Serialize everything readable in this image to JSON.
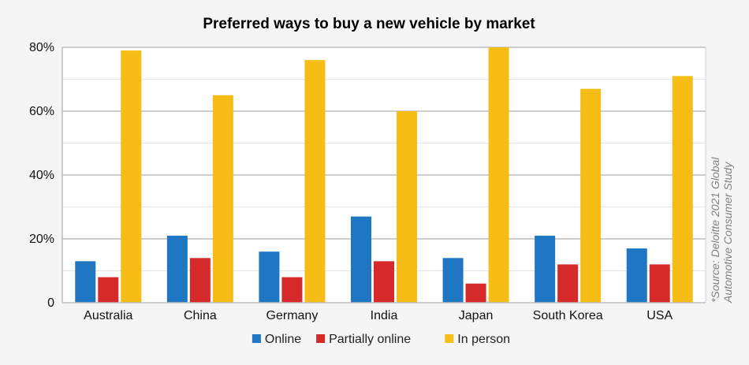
{
  "chart_data": {
    "type": "bar",
    "title": "Preferred ways to buy a new vehicle by market",
    "source_note_line1": "*Source: Deloitte 2021 Global",
    "source_note_line2": "Automotive Consumer Study",
    "categories": [
      "Australia",
      "China",
      "Germany",
      "India",
      "Japan",
      "South Korea",
      "USA"
    ],
    "series": [
      {
        "name": "Online",
        "color": "#1f77c4",
        "values": [
          13,
          21,
          16,
          27,
          14,
          21,
          17
        ]
      },
      {
        "name": "Partially online",
        "color": "#d62a2a",
        "values": [
          8,
          14,
          8,
          13,
          6,
          12,
          12
        ]
      },
      {
        "name": "In person",
        "color": "#f6bd16",
        "values": [
          79,
          65,
          76,
          60,
          80,
          67,
          71
        ]
      }
    ],
    "y_ticks": [
      "0",
      "20%",
      "40%",
      "60%",
      "80%"
    ],
    "y_tick_values": [
      0,
      20,
      40,
      60,
      80
    ],
    "ylim": [
      0,
      80
    ],
    "grid": true,
    "legend_position": "bottom"
  }
}
